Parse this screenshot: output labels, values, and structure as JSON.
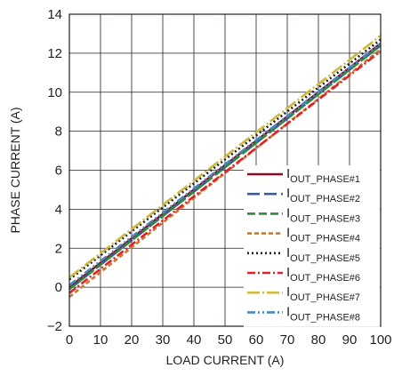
{
  "chart_data": {
    "type": "line",
    "xlabel": "LOAD CURRENT (A)",
    "ylabel": "PHASE CURRENT (A)",
    "xlim": [
      0,
      100
    ],
    "ylim": [
      -2,
      14
    ],
    "xticks": [
      "0",
      "10",
      "20",
      "30",
      "40",
      "50",
      "60",
      "70",
      "80",
      "90",
      "100"
    ],
    "yticks": [
      "−2",
      "0",
      "2",
      "4",
      "6",
      "8",
      "10",
      "12",
      "14"
    ],
    "grid": true,
    "legend_position": "bottom-right",
    "series": [
      {
        "name_main": "I",
        "name_sub": "OUT_PHASE#1",
        "color": "#8b0a1f",
        "dash": "solid",
        "x": [
          0,
          100
        ],
        "y": [
          0.0,
          12.5
        ]
      },
      {
        "name_main": "I",
        "name_sub": "OUT_PHASE#2",
        "color": "#3c5a9a",
        "dash": "long-dash",
        "x": [
          0,
          100
        ],
        "y": [
          -0.1,
          12.4
        ]
      },
      {
        "name_main": "I",
        "name_sub": "OUT_PHASE#3",
        "color": "#2e8b3e",
        "dash": "dash",
        "x": [
          0,
          100
        ],
        "y": [
          -0.1,
          12.4
        ]
      },
      {
        "name_main": "I",
        "name_sub": "OUT_PHASE#4",
        "color": "#c9782b",
        "dash": "short-dash",
        "x": [
          0,
          100
        ],
        "y": [
          -0.5,
          12.2
        ]
      },
      {
        "name_main": "I",
        "name_sub": "OUT_PHASE#5",
        "color": "#231f20",
        "dash": "dot",
        "x": [
          0,
          100
        ],
        "y": [
          0.4,
          12.7
        ]
      },
      {
        "name_main": "I",
        "name_sub": "OUT_PHASE#6",
        "color": "#e0202a",
        "dash": "dash-dot",
        "x": [
          0,
          100
        ],
        "y": [
          -0.3,
          12.1
        ]
      },
      {
        "name_main": "I",
        "name_sub": "OUT_PHASE#7",
        "color": "#cdb83a",
        "dash": "long-dash-dot",
        "x": [
          0,
          100
        ],
        "y": [
          0.5,
          12.9
        ]
      },
      {
        "name_main": "I",
        "name_sub": "OUT_PHASE#8",
        "color": "#4a86c0",
        "dash": "dash-dot-dot",
        "x": [
          0,
          100
        ],
        "y": [
          0.1,
          12.5
        ]
      }
    ]
  }
}
